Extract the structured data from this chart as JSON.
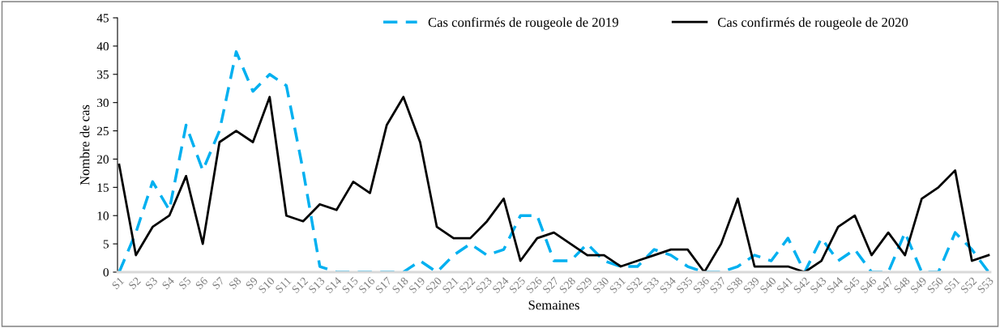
{
  "chart_data": {
    "type": "line",
    "xlabel": "Semaines",
    "ylabel": "Nombre de cas",
    "categories": [
      "S1",
      "S2",
      "S3",
      "S4",
      "S5",
      "S6",
      "S7",
      "S8",
      "S9",
      "S10",
      "S11",
      "S12",
      "S13",
      "S14",
      "S15",
      "S16",
      "S17",
      "S18",
      "S19",
      "S20",
      "S21",
      "S22",
      "S23",
      "S24",
      "S25",
      "S26",
      "S27",
      "S28",
      "S29",
      "S30",
      "S31",
      "S32",
      "S33",
      "S34",
      "S35",
      "S36",
      "S37",
      "S38",
      "S39",
      "S40",
      "S41",
      "S42",
      "S43",
      "S44",
      "S45",
      "S46",
      "S47",
      "S48",
      "S49",
      "S50",
      "S51",
      "S52",
      "S53"
    ],
    "series": [
      {
        "name": "Cas confirmés de rougeole de 2019",
        "color": "#00b0f0",
        "line_style": "dashed",
        "values": [
          0,
          7,
          16,
          11,
          26,
          18,
          25,
          39,
          32,
          35,
          33,
          18,
          1,
          0,
          0,
          0,
          0,
          0,
          2,
          0,
          3,
          5,
          3,
          4,
          10,
          10,
          2,
          2,
          5,
          2,
          1,
          1,
          4,
          3,
          1,
          0,
          0,
          1,
          3,
          2,
          6,
          0,
          6,
          2,
          4,
          0,
          0,
          7,
          0,
          0,
          7,
          4,
          0
        ]
      },
      {
        "name": "Cas confirmés de rougeole de 2020",
        "color": "#000000",
        "line_style": "solid",
        "values": [
          19,
          3,
          8,
          10,
          17,
          5,
          23,
          25,
          23,
          31,
          10,
          9,
          12,
          11,
          16,
          14,
          26,
          31,
          23,
          8,
          6,
          6,
          9,
          13,
          2,
          6,
          7,
          5,
          3,
          3,
          1,
          2,
          3,
          4,
          4,
          0,
          5,
          13,
          1,
          1,
          1,
          0,
          2,
          8,
          10,
          3,
          7,
          3,
          13,
          15,
          18,
          2,
          3
        ]
      }
    ],
    "ylim": [
      0,
      45
    ],
    "yticks": [
      0,
      5,
      10,
      15,
      20,
      25,
      30,
      35,
      40,
      45
    ],
    "grid": false,
    "legend": "top right",
    "marker": "none"
  }
}
